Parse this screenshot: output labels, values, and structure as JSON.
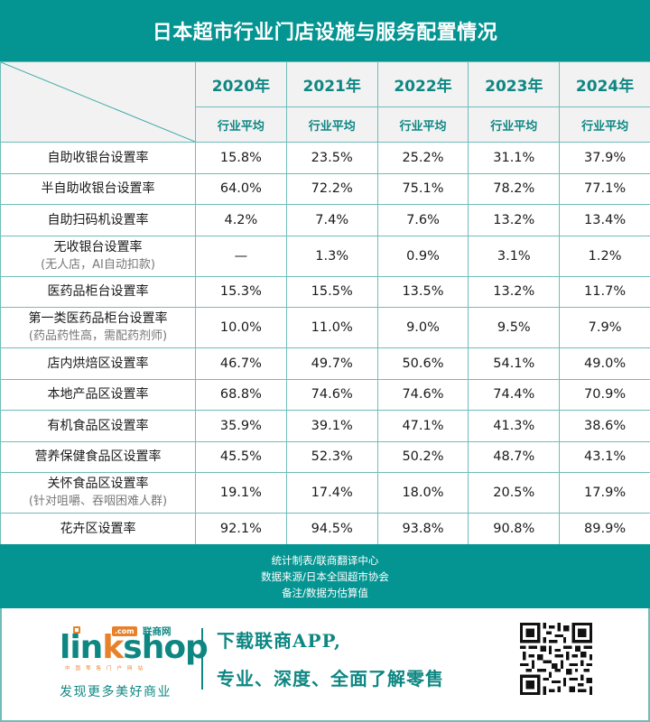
{
  "title": "日本超市行业门店设施与服务配置情况",
  "table": {
    "years": [
      "2020年",
      "2021年",
      "2022年",
      "2023年",
      "2024年"
    ],
    "sub_header": "行业平均",
    "rows": [
      {
        "label": "自助收银台设置率",
        "note": null,
        "values": [
          "15.8%",
          "23.5%",
          "25.2%",
          "31.1%",
          "37.9%"
        ]
      },
      {
        "label": "半自助收银台设置率",
        "note": null,
        "values": [
          "64.0%",
          "72.2%",
          "75.1%",
          "78.2%",
          "77.1%"
        ]
      },
      {
        "label": "自助扫码机设置率",
        "note": null,
        "values": [
          "4.2%",
          "7.4%",
          "7.6%",
          "13.2%",
          "13.4%"
        ]
      },
      {
        "label": "无收银台设置率",
        "note": "(无人店，AI自动扣款)",
        "values": [
          "—",
          "1.3%",
          "0.9%",
          "3.1%",
          "1.2%"
        ]
      },
      {
        "label": "医药品柜台设置率",
        "note": null,
        "values": [
          "15.3%",
          "15.5%",
          "13.5%",
          "13.2%",
          "11.7%"
        ]
      },
      {
        "label": "第一类医药品柜台设置率",
        "note": "(药品药性高，需配药剂师)",
        "values": [
          "10.0%",
          "11.0%",
          "9.0%",
          "9.5%",
          "7.9%"
        ]
      },
      {
        "label": "店内烘焙区设置率",
        "note": null,
        "values": [
          "46.7%",
          "49.7%",
          "50.6%",
          "54.1%",
          "49.0%"
        ]
      },
      {
        "label": "本地产品区设置率",
        "note": null,
        "values": [
          "68.8%",
          "74.6%",
          "74.6%",
          "74.4%",
          "70.9%"
        ]
      },
      {
        "label": "有机食品区设置率",
        "note": null,
        "values": [
          "35.9%",
          "39.1%",
          "47.1%",
          "41.3%",
          "38.6%"
        ]
      },
      {
        "label": "营养保健食品区设置率",
        "note": null,
        "values": [
          "45.5%",
          "52.3%",
          "50.2%",
          "48.7%",
          "43.1%"
        ]
      },
      {
        "label": "关怀食品区设置率",
        "note": "(针对咀嚼、吞咽困难人群)",
        "values": [
          "19.1%",
          "17.4%",
          "18.0%",
          "20.5%",
          "17.9%"
        ]
      },
      {
        "label": "花卉区设置率",
        "note": null,
        "values": [
          "92.1%",
          "94.5%",
          "93.8%",
          "90.8%",
          "89.9%"
        ]
      }
    ]
  },
  "footer": {
    "lines": [
      "统计制表/联商翻译中心",
      "数据来源/日本全国超市协会",
      "备注/数据为估算值"
    ]
  },
  "promo": {
    "logo": {
      "word_pre": "lin",
      "word_k": "k",
      "word_post": "shop",
      "com_badge": ".com",
      "cn_name": "联商网",
      "tagline": "中国零售门户网站"
    },
    "slogan": "发现更多美好商业",
    "cta_line1": "下载联商APP,",
    "cta_line2": "专业、深度、全面了解零售",
    "qr_icon": "qr-code-icon"
  },
  "colors": {
    "teal": "#049592",
    "teal_text": "#0e8783",
    "orange": "#e8822a",
    "grid": "#6fbdb9",
    "header_bg": "#f2f2f2"
  }
}
